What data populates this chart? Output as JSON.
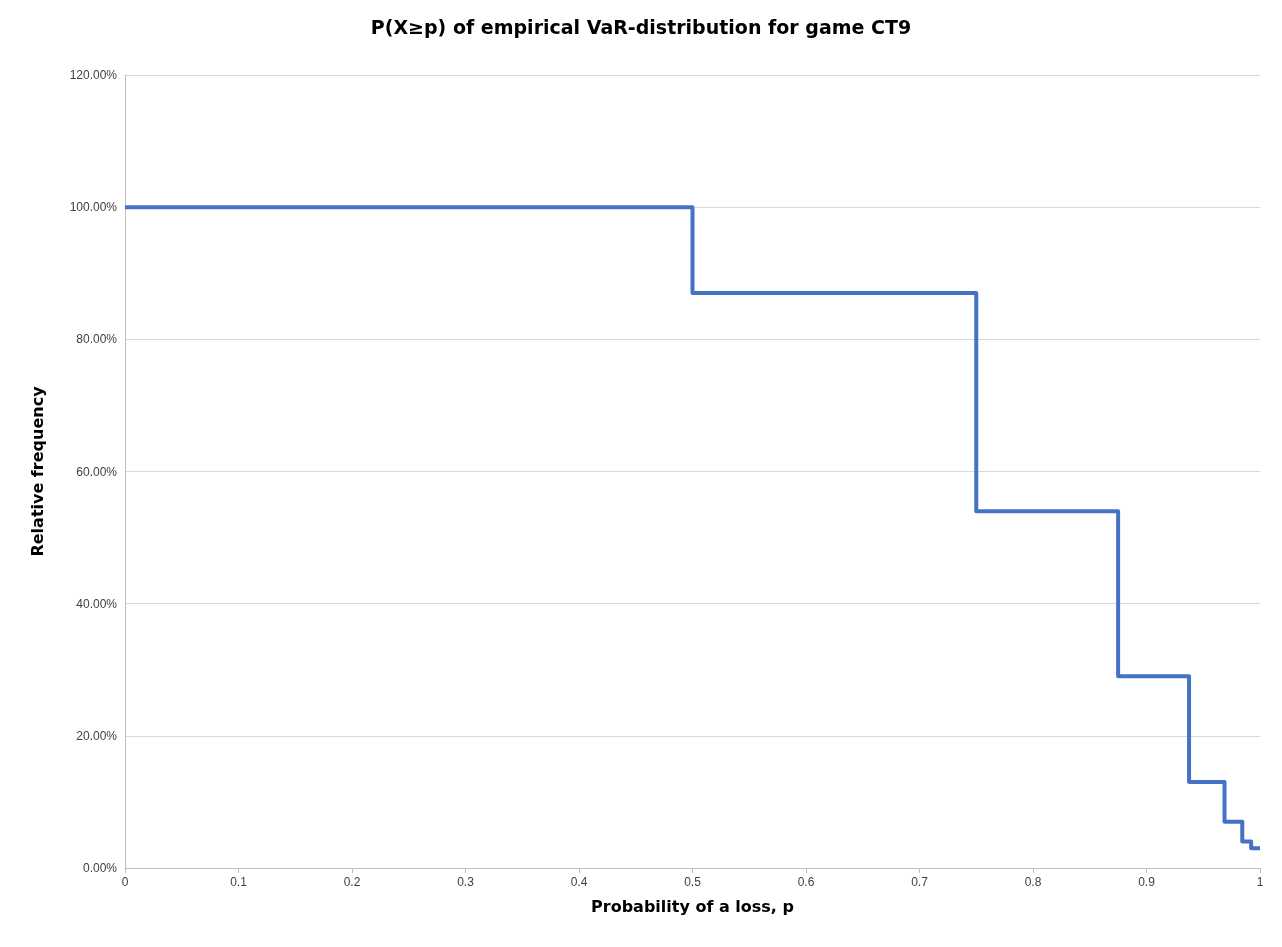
{
  "chart_data": {
    "type": "step",
    "title": "P(X≥p) of empirical VaR-distribution for game CT9",
    "xlabel": "Probability of a loss, p",
    "ylabel": "Relative frequency",
    "x": [
      0,
      0.5,
      0.75,
      0.875,
      0.9375,
      0.96875,
      0.984375,
      0.9921875,
      1
    ],
    "series": [
      {
        "color": "#4472c4",
        "values": [
          100,
          100,
          87,
          54,
          29,
          13,
          7,
          4,
          3
        ]
      }
    ],
    "xlim": [
      0,
      1
    ],
    "xticks": [
      0,
      0.1,
      0.2,
      0.3,
      0.4,
      0.5,
      0.6,
      0.7,
      0.8,
      0.9,
      1
    ],
    "ylim": [
      0,
      120
    ],
    "yticks": [
      {
        "value": 0,
        "label": "0.00%"
      },
      {
        "value": 20,
        "label": "20.00%"
      },
      {
        "value": 40,
        "label": "40.00%"
      },
      {
        "value": 60,
        "label": "60.00%"
      },
      {
        "value": 80,
        "label": "80.00%"
      },
      {
        "value": 100,
        "label": "100.00%"
      },
      {
        "value": 120,
        "label": "120.00%"
      }
    ],
    "grid": "y",
    "marker": "none",
    "line_style": "solid"
  }
}
